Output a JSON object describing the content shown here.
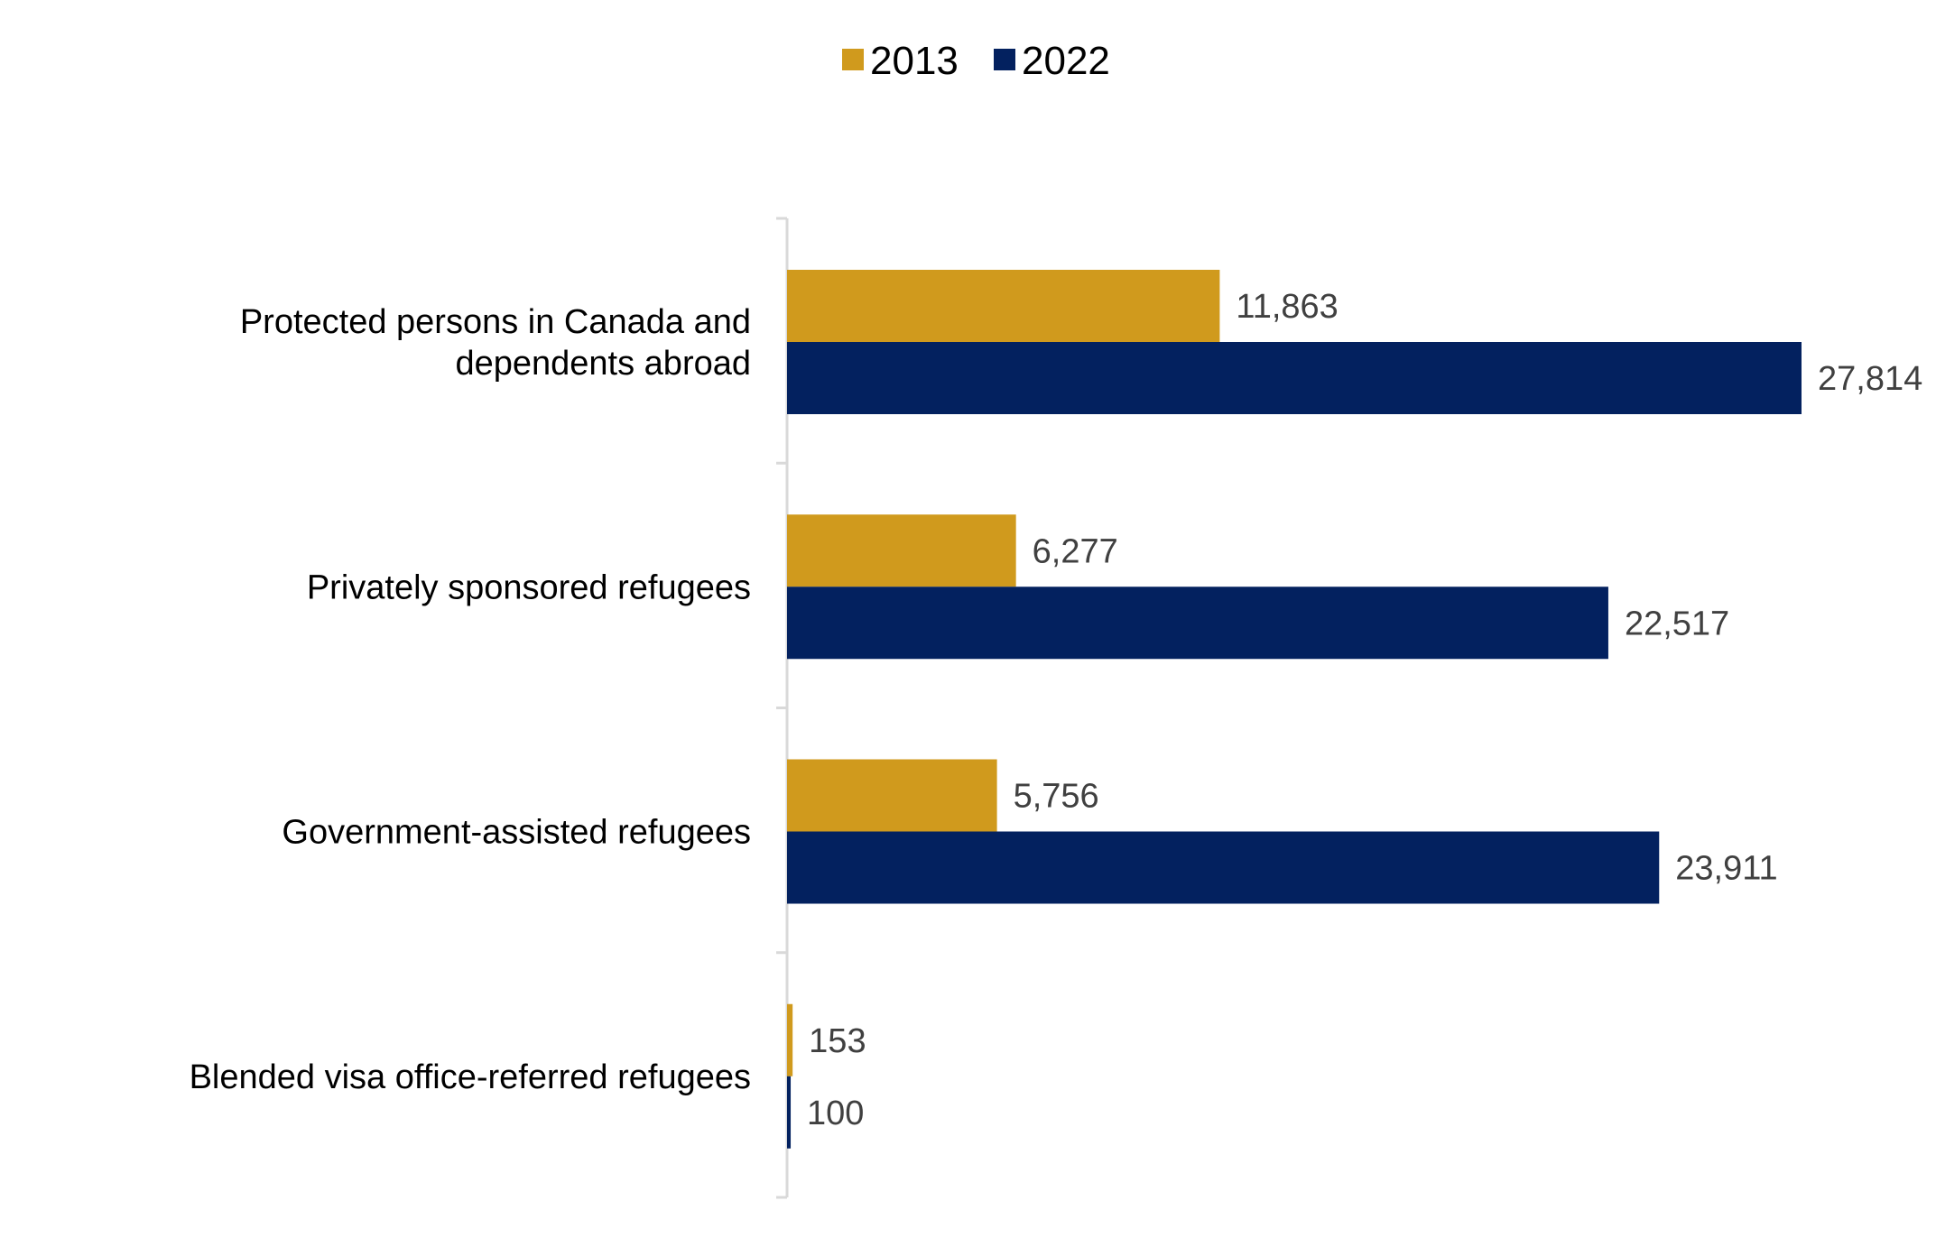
{
  "chart_data": {
    "type": "bar",
    "orientation": "horizontal",
    "title": "",
    "xlabel": "",
    "ylabel": "",
    "categories": [
      [
        "Protected persons in Canada and",
        "dependents abroad"
      ],
      [
        "Privately sponsored refugees"
      ],
      [
        "Government-assisted refugees"
      ],
      [
        "Blended visa office-referred refugees"
      ]
    ],
    "series": [
      {
        "name": "2013",
        "color": "#D09A1D",
        "values": [
          11863,
          6277,
          5756,
          153
        ],
        "labels": [
          "11,863",
          "6,277",
          "5,756",
          "153"
        ]
      },
      {
        "name": "2022",
        "color": "#03215F",
        "values": [
          27814,
          22517,
          23911,
          100
        ],
        "labels": [
          "27,814",
          "22,517",
          "23,911",
          "100"
        ]
      }
    ],
    "xlim": [
      0,
      27814
    ],
    "grid": false,
    "legend": "top-center"
  }
}
